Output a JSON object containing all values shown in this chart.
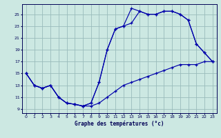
{
  "xlabel": "Graphe des températures (°c)",
  "bg_color": "#cce8e2",
  "line_color": "#0000aa",
  "grid_color": "#99bbbb",
  "x_ticks": [
    0,
    1,
    2,
    3,
    4,
    5,
    6,
    7,
    8,
    9,
    10,
    11,
    12,
    13,
    14,
    15,
    16,
    17,
    18,
    19,
    20,
    21,
    22,
    23
  ],
  "y_ticks": [
    9,
    11,
    13,
    15,
    17,
    19,
    21,
    23,
    25
  ],
  "xlim": [
    -0.5,
    23.5
  ],
  "ylim": [
    8.3,
    26.7
  ],
  "line1": {
    "x": [
      0,
      1,
      2,
      3,
      4,
      5,
      6,
      7,
      8,
      9,
      10,
      11,
      12,
      13,
      14,
      15,
      16,
      17,
      18,
      19,
      20,
      21,
      22,
      23
    ],
    "y": [
      15.0,
      13.0,
      12.5,
      13.0,
      11.0,
      10.0,
      9.8,
      9.5,
      9.5,
      10.0,
      11.0,
      12.0,
      13.0,
      13.5,
      14.0,
      14.5,
      15.0,
      15.5,
      16.0,
      16.5,
      16.5,
      16.5,
      17.0,
      17.0
    ]
  },
  "line2": {
    "x": [
      0,
      1,
      2,
      3,
      4,
      5,
      6,
      7,
      8,
      9,
      10,
      11,
      12,
      13,
      14,
      15,
      16,
      17,
      18,
      19,
      20,
      21,
      22,
      23
    ],
    "y": [
      15.0,
      13.0,
      12.5,
      13.0,
      11.0,
      10.0,
      9.8,
      9.5,
      10.0,
      13.5,
      19.0,
      22.5,
      23.0,
      23.5,
      25.5,
      25.0,
      25.0,
      25.5,
      25.5,
      25.0,
      24.0,
      20.0,
      18.5,
      17.0
    ]
  },
  "line3": {
    "x": [
      0,
      1,
      2,
      3,
      4,
      5,
      6,
      7,
      8,
      9,
      10,
      11,
      12,
      13,
      14,
      15,
      16,
      17,
      18,
      19,
      20,
      21,
      22,
      23
    ],
    "y": [
      15.0,
      13.0,
      12.5,
      13.0,
      11.0,
      10.0,
      9.8,
      9.5,
      10.0,
      13.5,
      19.0,
      22.5,
      23.0,
      26.0,
      25.5,
      25.0,
      25.0,
      25.5,
      25.5,
      25.0,
      24.0,
      20.0,
      18.5,
      17.0
    ]
  }
}
